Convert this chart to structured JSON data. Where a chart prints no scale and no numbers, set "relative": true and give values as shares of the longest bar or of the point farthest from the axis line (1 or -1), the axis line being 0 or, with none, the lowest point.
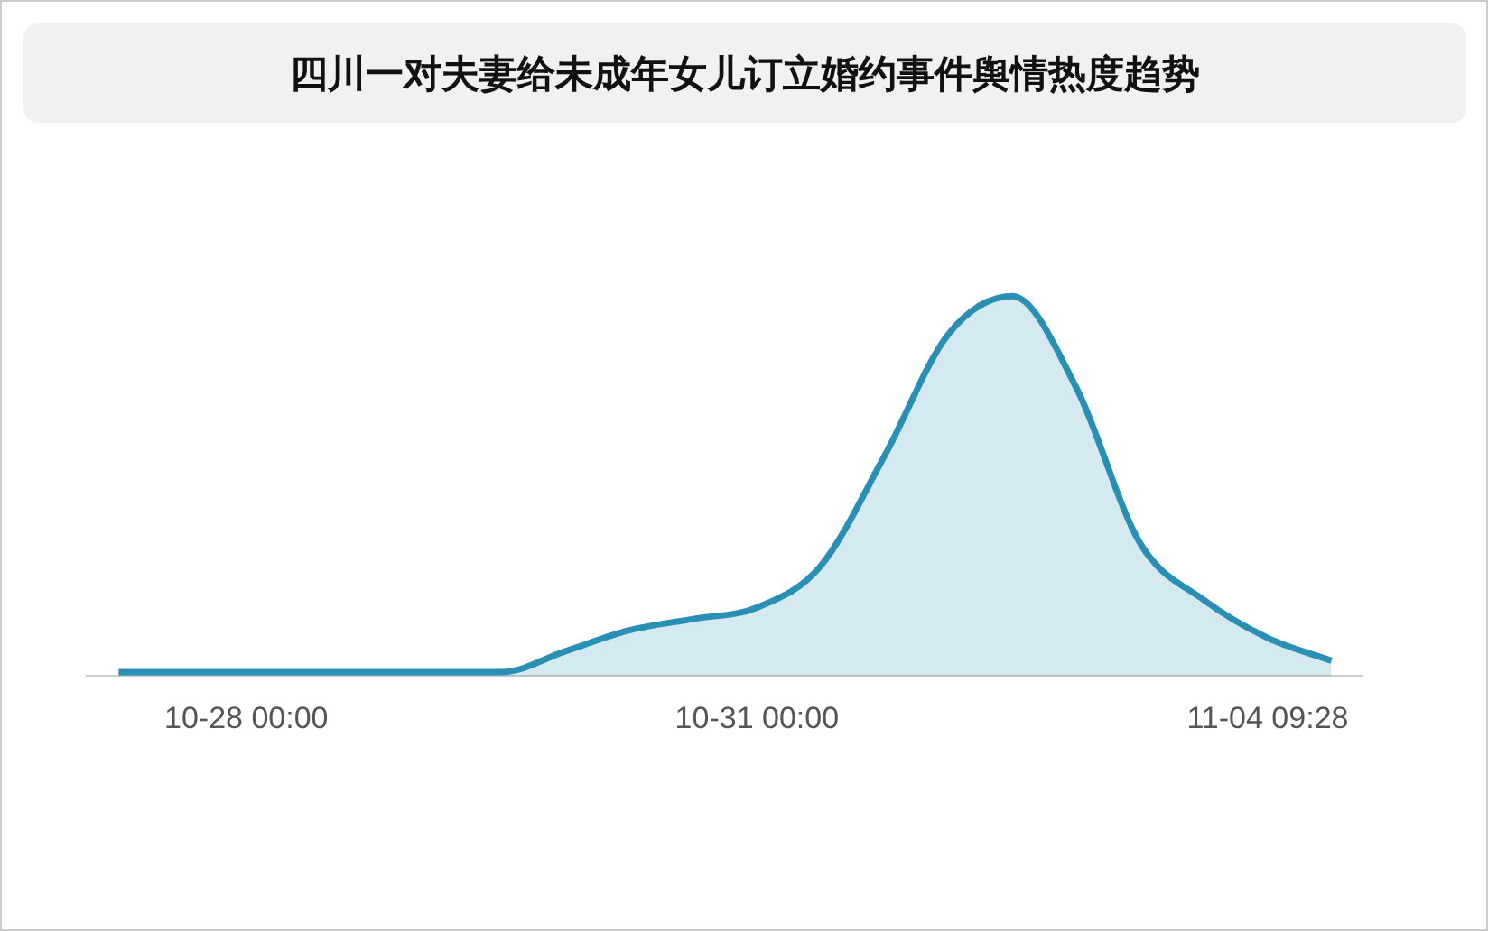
{
  "chart_data": {
    "type": "area",
    "title": "四川一对夫妻给未成年女儿订立婚约事件舆情热度趋势",
    "relative": true,
    "color": "#2a8fb5",
    "categories": [
      null,
      null,
      "10-28 00:00",
      null,
      null,
      null,
      null,
      null,
      null,
      null,
      "10-31 00:00",
      null,
      null,
      null,
      null,
      null,
      null,
      null,
      "11-04 09:28",
      null
    ],
    "values": [
      0.01,
      0.01,
      0.01,
      0.01,
      0.01,
      0.01,
      0.01,
      0.065,
      0.12,
      0.15,
      0.18,
      0.29,
      0.58,
      0.9,
      1,
      0.76,
      0.35,
      0.2,
      0.1,
      0.04
    ]
  }
}
